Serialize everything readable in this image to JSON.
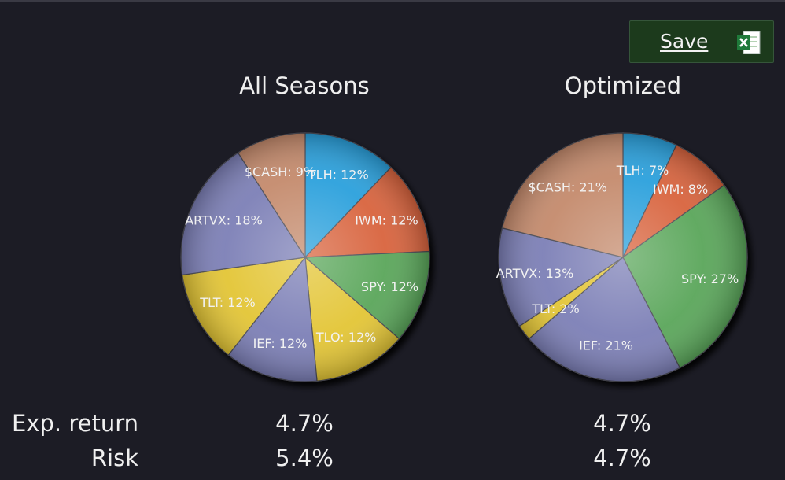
{
  "toolbar": {
    "save_label": "Save",
    "save_icon": "excel-icon"
  },
  "colors": {
    "TLH": "#2aa0dc",
    "IWM": "#d8643c",
    "SPY": "#5aa65a",
    "TLO": "#e3c536",
    "IEF": "#7c7fb6",
    "TLT": "#e3c536",
    "ARTVX": "#7c7fb6",
    "$CASH": "#c48a6c"
  },
  "chart_data": [
    {
      "type": "pie",
      "title": "All Seasons",
      "slices": [
        {
          "name": "TLH",
          "value": 12,
          "label": "TLH: 12%"
        },
        {
          "name": "IWM",
          "value": 12,
          "label": "IWM: 12%"
        },
        {
          "name": "SPY",
          "value": 12,
          "label": "SPY: 12%"
        },
        {
          "name": "TLO",
          "value": 12,
          "label": "TLO: 12%"
        },
        {
          "name": "IEF",
          "value": 12,
          "label": "IEF: 12%"
        },
        {
          "name": "TLT",
          "value": 12,
          "label": "TLT: 12%"
        },
        {
          "name": "ARTVX",
          "value": 18,
          "label": "ARTVX: 18%"
        },
        {
          "name": "$CASH",
          "value": 9,
          "label": "$CASH: 9%"
        }
      ]
    },
    {
      "type": "pie",
      "title": "Optimized",
      "slices": [
        {
          "name": "TLH",
          "value": 7,
          "label": "TLH: 7%"
        },
        {
          "name": "IWM",
          "value": 8,
          "label": "IWM: 8%"
        },
        {
          "name": "SPY",
          "value": 27,
          "label": "SPY: 27%"
        },
        {
          "name": "IEF",
          "value": 21,
          "label": "IEF: 21%"
        },
        {
          "name": "TLT",
          "value": 2,
          "label": "TLT: 2%"
        },
        {
          "name": "ARTVX",
          "value": 13,
          "label": "ARTVX: 13%"
        },
        {
          "name": "$CASH",
          "value": 21,
          "label": "$CASH: 21%"
        }
      ]
    }
  ],
  "metrics": {
    "exp_return_label": "Exp. return",
    "risk_label": "Risk",
    "all_seasons": {
      "exp_return": "4.7%",
      "risk": "5.4%"
    },
    "optimized": {
      "exp_return": "4.7%",
      "risk": "4.7%"
    }
  }
}
